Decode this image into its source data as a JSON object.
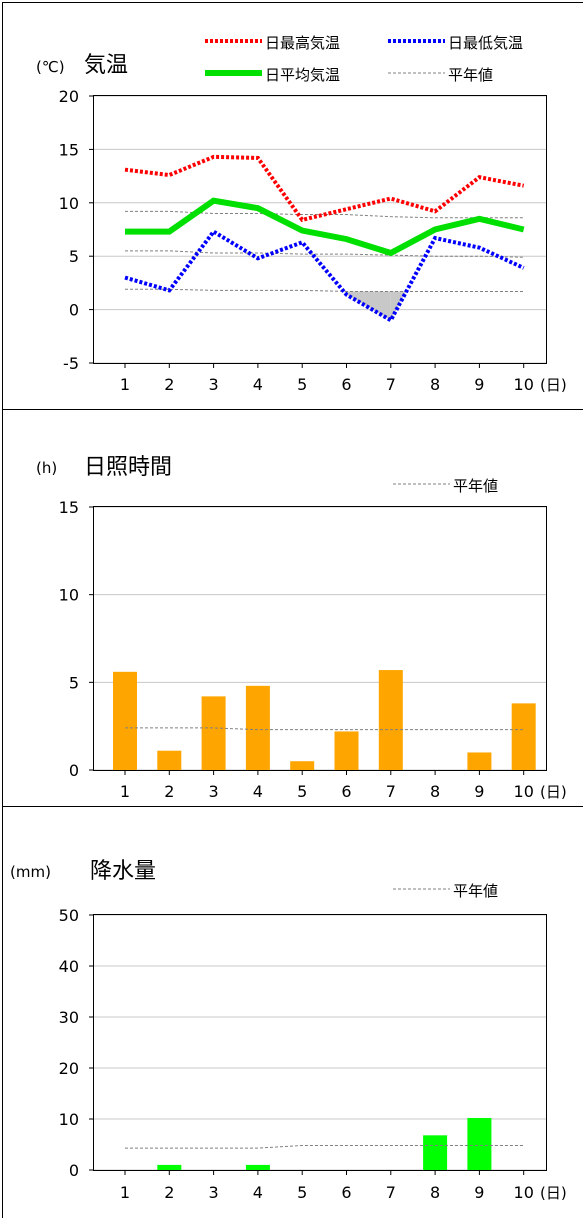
{
  "colors": {
    "frame": "#000000",
    "grid": "#c8c8c8",
    "normal_line": "#808080",
    "max_temp": "#ff0000",
    "min_temp": "#0000ff",
    "avg_temp": "#00e000",
    "below_fill": "#c8c8c8",
    "sunshine_bar": "#ffa500",
    "precip_bar": "#00ff00"
  },
  "chart_data": [
    {
      "type": "line",
      "title": "気温",
      "unit": "(℃)",
      "x_unit": "(日)",
      "categories": [
        "1",
        "2",
        "3",
        "4",
        "5",
        "6",
        "7",
        "8",
        "9",
        "10"
      ],
      "x": [
        1,
        2,
        3,
        4,
        5,
        6,
        7,
        8,
        9,
        10
      ],
      "ylim": [
        -5,
        20
      ],
      "yticks": [
        "20",
        "15",
        "10",
        "5",
        "0",
        "-5"
      ],
      "ytick_values": [
        20,
        15,
        10,
        5,
        0,
        -5
      ],
      "grid": true,
      "legend": {
        "placement": "top-right",
        "items": [
          "日最高気温",
          "日最低気温",
          "日平均気温",
          "平年値"
        ]
      },
      "series": [
        {
          "name": "日最高気温",
          "values": [
            13.1,
            12.6,
            14.3,
            14.2,
            8.4,
            9.4,
            10.4,
            9.2,
            12.4,
            11.6
          ]
        },
        {
          "name": "日最低気温",
          "values": [
            3.0,
            1.8,
            7.3,
            4.8,
            6.3,
            1.4,
            -1.0,
            6.7,
            5.8,
            3.9
          ]
        },
        {
          "name": "日平均気温",
          "values": [
            7.3,
            7.3,
            10.2,
            9.5,
            7.4,
            6.6,
            5.3,
            7.5,
            8.5,
            7.5
          ]
        }
      ],
      "normals": {
        "max": [
          9.2,
          9.2,
          9.0,
          9.0,
          8.9,
          8.9,
          8.7,
          8.6,
          8.6,
          8.6
        ],
        "avg": [
          5.5,
          5.5,
          5.3,
          5.3,
          5.2,
          5.2,
          5.1,
          5.0,
          5.0,
          4.9
        ],
        "min": [
          1.9,
          1.9,
          1.8,
          1.8,
          1.8,
          1.7,
          1.7,
          1.7,
          1.7,
          1.7
        ]
      }
    },
    {
      "type": "bar",
      "title": "日照時間",
      "unit": "(h)",
      "x_unit": "(日)",
      "categories": [
        "1",
        "2",
        "3",
        "4",
        "5",
        "6",
        "7",
        "8",
        "9",
        "10"
      ],
      "ylim": [
        0,
        15
      ],
      "yticks": [
        "15",
        "10",
        "5",
        "0"
      ],
      "ytick_values": [
        15,
        10,
        5,
        0
      ],
      "grid": true,
      "legend": {
        "placement": "top-right",
        "items": [
          "平年値"
        ]
      },
      "values": [
        5.6,
        1.1,
        4.2,
        4.8,
        0.5,
        2.2,
        5.7,
        0,
        1.0,
        3.8
      ],
      "normals": [
        2.4,
        2.4,
        2.4,
        2.3,
        2.3,
        2.3,
        2.3,
        2.3,
        2.3,
        2.3
      ]
    },
    {
      "type": "bar",
      "title": "降水量",
      "unit": "(mm)",
      "x_unit": "(日)",
      "categories": [
        "1",
        "2",
        "3",
        "4",
        "5",
        "6",
        "7",
        "8",
        "9",
        "10"
      ],
      "ylim": [
        0,
        50
      ],
      "yticks": [
        "50",
        "40",
        "30",
        "20",
        "10",
        "0"
      ],
      "ytick_values": [
        50,
        40,
        30,
        20,
        10,
        0
      ],
      "grid": true,
      "legend": {
        "placement": "top-right",
        "items": [
          "平年値"
        ]
      },
      "values": [
        0,
        1.0,
        0,
        1.0,
        0,
        0,
        0,
        6.8,
        10.2,
        0
      ],
      "normals": [
        4.3,
        4.3,
        4.3,
        4.3,
        4.8,
        4.8,
        4.8,
        4.8,
        4.8,
        4.8
      ]
    }
  ]
}
